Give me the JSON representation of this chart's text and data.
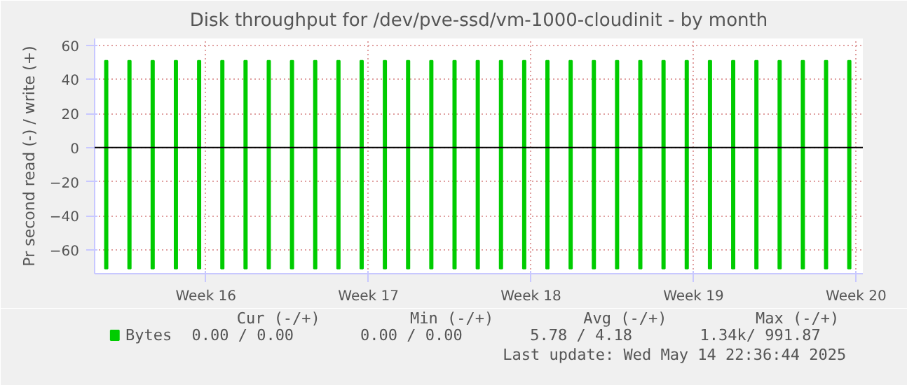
{
  "chart_data": {
    "type": "bar",
    "title": "Disk throughput for /dev/pve-ssd/vm-1000-cloudinit - by month",
    "ylabel": "Pr second read (-) / write (+)",
    "x": [
      "2025-04-09T17:00",
      "2025-04-10T17:00",
      "2025-04-11T17:00",
      "2025-04-12T17:00",
      "2025-04-13T17:00",
      "2025-04-14T17:00",
      "2025-04-15T17:00",
      "2025-04-16T17:00",
      "2025-04-17T17:00",
      "2025-04-18T17:00",
      "2025-04-19T17:00",
      "2025-04-20T17:00",
      "2025-04-21T17:00",
      "2025-04-22T17:00",
      "2025-04-23T17:00",
      "2025-04-24T17:00",
      "2025-04-25T17:00",
      "2025-04-26T17:00",
      "2025-04-27T17:00",
      "2025-04-28T17:00",
      "2025-04-29T17:00",
      "2025-04-30T17:00",
      "2025-05-01T17:00",
      "2025-05-02T17:00",
      "2025-05-03T17:00",
      "2025-05-04T17:00",
      "2025-05-05T17:00",
      "2025-05-06T17:00",
      "2025-05-07T17:00",
      "2025-05-08T17:00",
      "2025-05-09T17:00",
      "2025-05-10T17:00",
      "2025-05-11T17:00"
    ],
    "series": [
      {
        "name": "Bytes",
        "color": "#00cc00",
        "values": [
          51,
          51,
          51,
          51,
          51,
          51,
          51,
          51,
          51,
          51,
          51,
          51,
          51,
          51,
          51,
          51,
          51,
          51,
          51,
          51,
          51,
          51,
          51,
          51,
          51,
          51,
          51,
          51,
          51,
          51,
          51,
          51,
          51
        ]
      },
      {
        "color": "#00cc00",
        "values": [
          -71,
          -71,
          -71,
          -71,
          -71,
          -71,
          -71,
          -71,
          -71,
          -71,
          -71,
          -71,
          -71,
          -71,
          -71,
          -71,
          -71,
          -71,
          -71,
          -71,
          -71,
          -71,
          -71,
          -71,
          -71,
          -71,
          -71,
          -71,
          -71,
          -71,
          -71,
          -71,
          -71
        ]
      }
    ],
    "xlim": [
      "2025-04-09T05:00",
      "2025-05-12T07:00"
    ],
    "xticks": [
      {
        "value": "2025-04-14",
        "label": "Week 16"
      },
      {
        "value": "2025-04-21",
        "label": "Week 17"
      },
      {
        "value": "2025-04-28",
        "label": "Week 18"
      },
      {
        "value": "2025-05-05",
        "label": "Week 19"
      },
      {
        "value": "2025-05-12",
        "label": "Week 20"
      }
    ],
    "ylim": [
      -74,
      64
    ],
    "yticks": [
      -60,
      -40,
      -20,
      0,
      20,
      40,
      60
    ],
    "grid": true,
    "legend": "bottom left",
    "annotations": [
      "Cur (-/+)",
      "Min (-/+)",
      "Avg (-/+)",
      "Max (-/+)",
      "0.00 /     0.00",
      "0.00 /     0.00",
      "5.78 /     4.18",
      "1.34k/   991.87",
      "Last update: Wed May 14 22:36:44 2025"
    ]
  }
}
